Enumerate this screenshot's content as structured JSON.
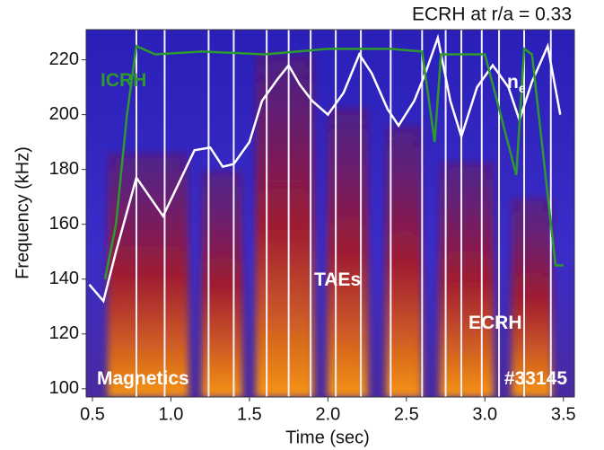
{
  "chart_data": {
    "type": "line",
    "title": "ECRH at r/a = 0.33",
    "x_label": "Time (sec)",
    "y_label": "Frequency (kHz)",
    "xlim": [
      0.46,
      3.57
    ],
    "ylim": [
      97,
      231
    ],
    "xticks": [
      0.5,
      {
        "value": 1,
        "label": "1.0"
      },
      1.5,
      {
        "value": 2,
        "label": "2.0"
      },
      2.5,
      {
        "value": 3,
        "label": "3.0"
      },
      3.5
    ],
    "yticks": [
      100,
      120,
      140,
      160,
      180,
      200,
      220
    ],
    "series": [
      {
        "name": "ne",
        "color": "#ffffff",
        "x": [
          0.48,
          0.57,
          0.65,
          0.78,
          0.95,
          1.05,
          1.15,
          1.25,
          1.33,
          1.4,
          1.5,
          1.58,
          1.68,
          1.75,
          1.82,
          1.9,
          2.0,
          2.1,
          2.2,
          2.28,
          2.38,
          2.45,
          2.55,
          2.62,
          2.7,
          2.78,
          2.85,
          2.95,
          3.05,
          3.15,
          3.22,
          3.3,
          3.4,
          3.48
        ],
        "values": [
          138,
          132,
          150,
          177,
          163,
          175,
          187,
          188,
          181,
          182,
          190,
          205,
          213,
          218,
          211,
          205,
          200,
          208,
          222,
          215,
          202,
          196,
          205,
          215,
          228,
          205,
          192,
          210,
          218,
          210,
          198,
          212,
          225,
          200
        ]
      },
      {
        "name": "ICRH",
        "color": "#2e9a2e",
        "x": [
          0.58,
          0.65,
          0.72,
          0.78,
          0.9,
          1.2,
          1.6,
          2.0,
          2.4,
          2.6,
          2.68,
          2.72,
          2.8,
          3.0,
          3.2,
          3.25,
          3.3,
          3.45,
          3.5
        ],
        "values": [
          140,
          160,
          200,
          225,
          222,
          223,
          222,
          224,
          224,
          223,
          190,
          222,
          222,
          222,
          178,
          224,
          222,
          145,
          145
        ]
      }
    ],
    "ecrh_switch_times": [
      0.78,
      0.96,
      1.24,
      1.4,
      1.61,
      1.75,
      1.89,
      2.05,
      2.21,
      2.4,
      2.6,
      2.75,
      2.85,
      2.98,
      3.09,
      3.25,
      3.42
    ],
    "annotations": [
      {
        "text": "ICRH",
        "color": "#2e9a2e"
      },
      {
        "text": "n",
        "subscript": "e",
        "color": "#ffffff"
      },
      {
        "text": "TAEs",
        "color": "#ffffff"
      },
      {
        "text": "ECRH",
        "color": "#ffffff"
      },
      {
        "text": "Magnetics",
        "color": "#ffffff"
      },
      {
        "text": "#33145",
        "color": "#ffffff"
      }
    ]
  }
}
